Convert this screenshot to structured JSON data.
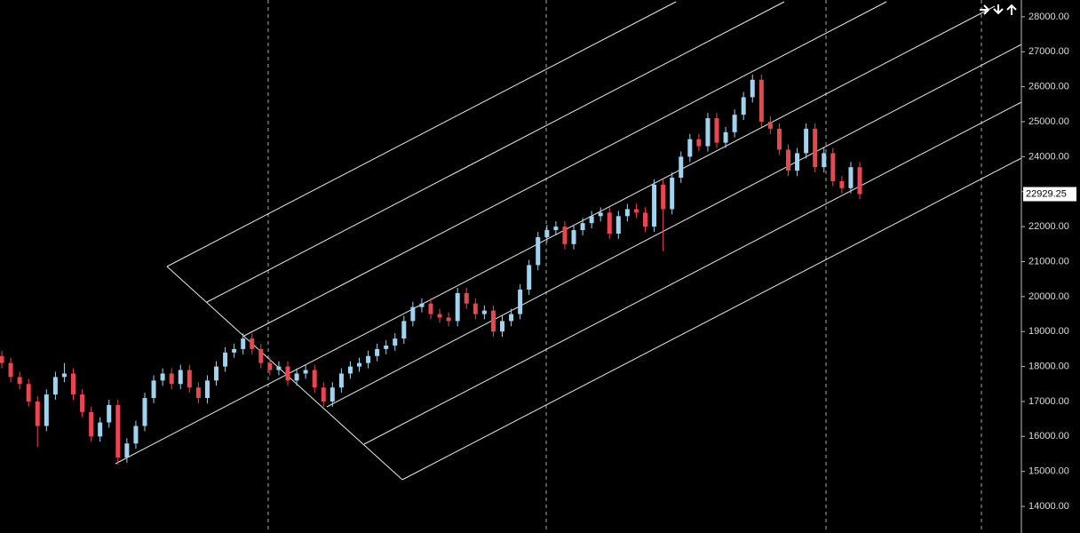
{
  "chart_data": {
    "type": "candlestick",
    "categories": [
      null,
      null,
      null,
      null,
      null,
      null,
      null,
      null,
      null,
      null,
      null,
      null,
      null,
      null,
      null,
      null,
      null,
      null,
      null,
      null,
      null,
      null,
      null,
      null,
      null,
      null,
      null,
      null,
      null,
      null,
      null,
      null,
      null,
      null,
      null,
      null,
      null,
      null,
      null,
      null,
      null,
      null,
      null,
      null,
      null,
      null,
      null,
      null,
      null,
      null,
      null,
      null,
      null,
      null,
      null,
      null,
      null,
      null,
      null,
      null,
      null,
      null,
      null,
      null,
      null,
      null,
      null,
      null,
      null,
      null,
      null,
      null,
      null,
      null,
      null,
      null,
      null,
      null,
      null,
      null,
      null,
      null,
      null,
      null,
      null,
      null,
      null,
      null,
      null,
      null,
      null,
      null,
      null,
      null,
      null,
      null,
      null
    ],
    "open": [
      18300,
      18100,
      17700,
      17500,
      17000,
      16300,
      17200,
      17700,
      17800,
      17200,
      16700,
      16000,
      16400,
      16900,
      15400,
      15800,
      16300,
      17100,
      17600,
      17800,
      17500,
      17900,
      17400,
      17100,
      17600,
      18000,
      18400,
      18500,
      18800,
      18500,
      18100,
      17900,
      18000,
      17600,
      17800,
      17900,
      17400,
      17000,
      17400,
      17800,
      18000,
      18100,
      18300,
      18500,
      18600,
      18800,
      19300,
      19700,
      19800,
      19500,
      19400,
      19300,
      20100,
      19800,
      19500,
      19600,
      19000,
      19300,
      19500,
      20200,
      20900,
      21700,
      21900,
      22000,
      21500,
      21900,
      22100,
      22300,
      22400,
      21800,
      22300,
      22500,
      22400,
      22000,
      23200,
      22500,
      23400,
      24000,
      24500,
      24300,
      25100,
      24400,
      24700,
      25200,
      25700,
      26200,
      25000,
      24800,
      24200,
      23600,
      24100,
      24800,
      23700,
      24100,
      23300,
      23100,
      23700
    ],
    "high": [
      18450,
      18250,
      17850,
      17650,
      17150,
      17350,
      17850,
      18100,
      17950,
      17350,
      16850,
      16550,
      17050,
      17050,
      15950,
      16450,
      17250,
      17750,
      17950,
      17950,
      18050,
      18050,
      17550,
      17750,
      18150,
      18550,
      18650,
      18950,
      18950,
      18650,
      18250,
      18150,
      18150,
      17950,
      18050,
      18050,
      17550,
      17550,
      17950,
      18150,
      18250,
      18450,
      18650,
      18750,
      18950,
      19450,
      19850,
      19950,
      19950,
      19650,
      19550,
      20250,
      20250,
      19950,
      19750,
      19750,
      19450,
      19650,
      20350,
      21050,
      21850,
      22050,
      22150,
      22150,
      22050,
      22250,
      22450,
      22550,
      22550,
      22450,
      22650,
      22650,
      22550,
      23350,
      23350,
      23550,
      24150,
      24650,
      24650,
      25250,
      25250,
      24850,
      25350,
      25850,
      26350,
      26350,
      25150,
      24950,
      24350,
      24250,
      24950,
      24950,
      24250,
      24250,
      23450,
      23850,
      23850
    ],
    "low": [
      17950,
      17550,
      17350,
      16850,
      15700,
      16150,
      17050,
      17550,
      17050,
      16550,
      15850,
      15850,
      16250,
      15200,
      15250,
      15650,
      16150,
      16950,
      17450,
      17350,
      17350,
      17250,
      16950,
      16950,
      17450,
      17850,
      18250,
      18350,
      18350,
      17950,
      17750,
      17750,
      17450,
      17450,
      17650,
      17250,
      16850,
      16850,
      17250,
      17650,
      17850,
      17950,
      18150,
      18350,
      18450,
      18650,
      19150,
      19550,
      19350,
      19250,
      19150,
      19150,
      19650,
      19350,
      19350,
      18850,
      18850,
      19150,
      19350,
      20050,
      20750,
      21550,
      21750,
      21350,
      21350,
      21750,
      21950,
      22150,
      21650,
      21650,
      22150,
      22250,
      21850,
      21850,
      21300,
      22350,
      23250,
      23850,
      24150,
      24150,
      24250,
      24250,
      24550,
      25050,
      25550,
      24850,
      24650,
      24050,
      23450,
      23450,
      23950,
      23550,
      23550,
      23150,
      22950,
      22950,
      22780
    ],
    "close": [
      18100,
      17700,
      17500,
      17000,
      16300,
      17200,
      17700,
      17800,
      17200,
      16700,
      16000,
      16400,
      16900,
      15400,
      15800,
      16300,
      17100,
      17600,
      17800,
      17500,
      17900,
      17400,
      17100,
      17600,
      18000,
      18400,
      18500,
      18800,
      18500,
      18100,
      17900,
      18000,
      17600,
      17800,
      17900,
      17400,
      17000,
      17400,
      17800,
      18000,
      18100,
      18300,
      18500,
      18600,
      18800,
      19300,
      19700,
      19800,
      19500,
      19400,
      19300,
      20100,
      19800,
      19500,
      19600,
      19000,
      19300,
      19500,
      20200,
      20900,
      21700,
      21900,
      22000,
      21500,
      21900,
      22100,
      22300,
      22400,
      21800,
      22300,
      22500,
      22400,
      22000,
      23200,
      22500,
      23400,
      24000,
      24500,
      24300,
      25100,
      24400,
      24700,
      25200,
      25700,
      26200,
      25000,
      24800,
      24200,
      23600,
      24100,
      24800,
      23700,
      24100,
      23300,
      23100,
      23700,
      22929.25
    ],
    "up_color": "#9fd3f0",
    "down_color": "#e8474f",
    "last_value": 22929.25,
    "ylim": [
      13240,
      28480
    ],
    "yticks": [
      {
        "value": 14000,
        "label": "14000.00"
      },
      {
        "value": 15000,
        "label": "15000.00"
      },
      {
        "value": 16000,
        "label": "16000.00"
      },
      {
        "value": 17000,
        "label": "17000.00"
      },
      {
        "value": 18000,
        "label": "18000.00"
      },
      {
        "value": 19000,
        "label": "19000.00"
      },
      {
        "value": 20000,
        "label": "20000.00"
      },
      {
        "value": 21000,
        "label": "21000.00"
      },
      {
        "value": 22000,
        "label": "22000.00"
      },
      {
        "value": 23000,
        "label": "23000.00"
      },
      {
        "value": 24000,
        "label": "24000.00"
      },
      {
        "value": 25000,
        "label": "25000.00"
      },
      {
        "value": 26000,
        "label": "26000.00"
      },
      {
        "value": 27000,
        "label": "27000.00"
      },
      {
        "value": 28000,
        "label": "28000.00"
      }
    ]
  }
}
